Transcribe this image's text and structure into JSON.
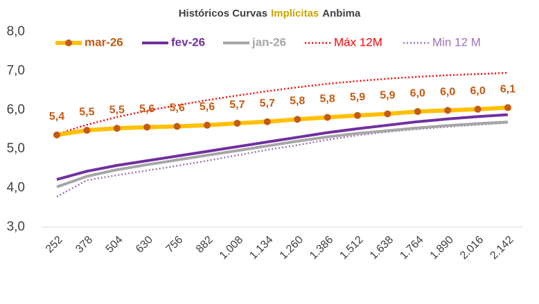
{
  "chart_data": {
    "type": "line",
    "title": [
      "Históricos Curvas",
      "Implícitas",
      "Anbima"
    ],
    "title_colors": [
      "#404040",
      "#C9A400",
      "#404040"
    ],
    "categories": [
      "252",
      "378",
      "504",
      "630",
      "756",
      "882",
      "1.008",
      "1.134",
      "1.260",
      "1.386",
      "1.512",
      "1.638",
      "1.764",
      "1.890",
      "2.016",
      "2.142"
    ],
    "ylim": [
      3,
      8
    ],
    "yticks": [
      {
        "value": 3,
        "label": "3,0"
      },
      {
        "value": 4,
        "label": "4,0"
      },
      {
        "value": 5,
        "label": "5,0"
      },
      {
        "value": 6,
        "label": "6,0"
      },
      {
        "value": 7,
        "label": "7,0"
      },
      {
        "value": 8,
        "label": "8,0"
      }
    ],
    "grid": false,
    "legend": "top",
    "series": [
      {
        "name": "mar-26",
        "color": "#FFC000",
        "marker_color": "#C55A11",
        "style": "solid",
        "width": 6,
        "values": [
          5.36,
          5.48,
          5.53,
          5.56,
          5.58,
          5.61,
          5.66,
          5.7,
          5.76,
          5.81,
          5.86,
          5.9,
          5.96,
          5.99,
          6.02,
          6.06
        ],
        "value_labels": [
          "5,4",
          "5,5",
          "5,5",
          "5,6",
          "5,6",
          "5,6",
          "5,7",
          "5,7",
          "5,8",
          "5,8",
          "5,9",
          "5,9",
          "6,0",
          "6,0",
          "6,0",
          "6,1"
        ]
      },
      {
        "name": "fev-26",
        "color": "#7030A0",
        "style": "solid",
        "width": 4,
        "values": [
          4.22,
          4.43,
          4.58,
          4.7,
          4.82,
          4.94,
          5.06,
          5.18,
          5.3,
          5.42,
          5.52,
          5.61,
          5.7,
          5.77,
          5.83,
          5.88
        ]
      },
      {
        "name": "jan-26",
        "color": "#A6A6A6",
        "style": "solid",
        "width": 4,
        "values": [
          4.03,
          4.3,
          4.47,
          4.6,
          4.72,
          4.84,
          4.96,
          5.08,
          5.2,
          5.31,
          5.4,
          5.47,
          5.54,
          5.6,
          5.65,
          5.69
        ]
      },
      {
        "name": "Máx 12M",
        "color": "#FF0000",
        "style": "dotted",
        "width": 2.5,
        "values": [
          5.38,
          5.62,
          5.82,
          5.98,
          6.12,
          6.25,
          6.37,
          6.48,
          6.58,
          6.67,
          6.74,
          6.8,
          6.85,
          6.89,
          6.92,
          6.95
        ]
      },
      {
        "name": "Min 12 M",
        "color": "#9E6FB8",
        "style": "dotted",
        "width": 2.5,
        "values": [
          3.78,
          4.2,
          4.33,
          4.45,
          4.57,
          4.7,
          4.84,
          4.98,
          5.1,
          5.24,
          5.35,
          5.44,
          5.51,
          5.57,
          5.62,
          5.67
        ]
      }
    ]
  }
}
